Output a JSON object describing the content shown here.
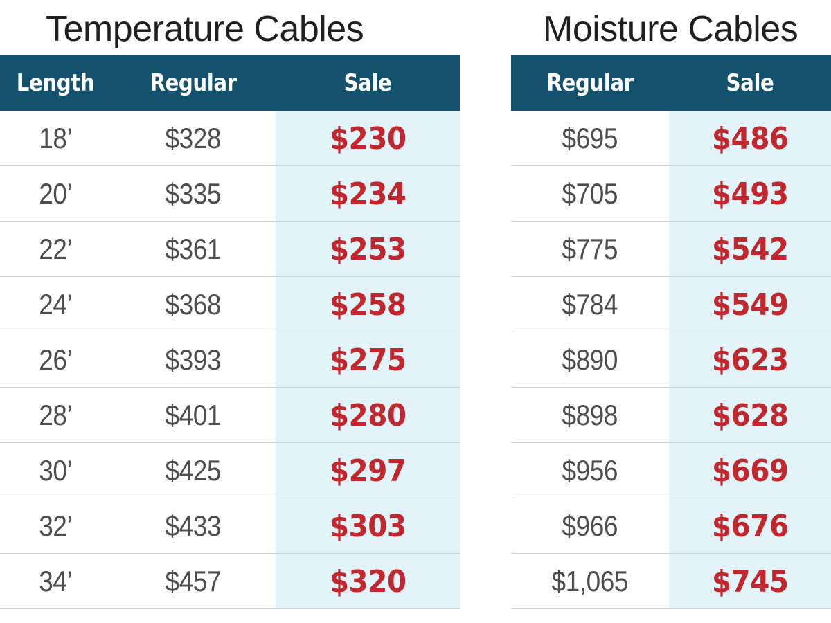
{
  "temperature": {
    "title": "Temperature Cables",
    "headers": {
      "length": "Length",
      "regular": "Regular",
      "sale": "Sale"
    },
    "rows": [
      {
        "length": "18’",
        "regular": "$328",
        "sale": "$230"
      },
      {
        "length": "20’",
        "regular": "$335",
        "sale": "$234"
      },
      {
        "length": "22’",
        "regular": "$361",
        "sale": "$253"
      },
      {
        "length": "24’",
        "regular": "$368",
        "sale": "$258"
      },
      {
        "length": "26’",
        "regular": "$393",
        "sale": "$275"
      },
      {
        "length": "28’",
        "regular": "$401",
        "sale": "$280"
      },
      {
        "length": "30’",
        "regular": "$425",
        "sale": "$297"
      },
      {
        "length": "32’",
        "regular": "$433",
        "sale": "$303"
      },
      {
        "length": "34’",
        "regular": "$457",
        "sale": "$320"
      }
    ]
  },
  "moisture": {
    "title": "Moisture Cables",
    "headers": {
      "regular": "Regular",
      "sale": "Sale"
    },
    "rows": [
      {
        "regular": "$695",
        "sale": "$486"
      },
      {
        "regular": "$705",
        "sale": "$493"
      },
      {
        "regular": "$775",
        "sale": "$542"
      },
      {
        "regular": "$784",
        "sale": "$549"
      },
      {
        "regular": "$890",
        "sale": "$623"
      },
      {
        "regular": "$898",
        "sale": "$628"
      },
      {
        "regular": "$956",
        "sale": "$669"
      },
      {
        "regular": "$966",
        "sale": "$676"
      },
      {
        "regular": "$1,065",
        "sale": "$745"
      }
    ]
  },
  "colors": {
    "header_bg": "#13516d",
    "sale_text": "#c1272d",
    "sale_bg": "#e3f3fa",
    "regular_text": "#4d4d4d"
  }
}
